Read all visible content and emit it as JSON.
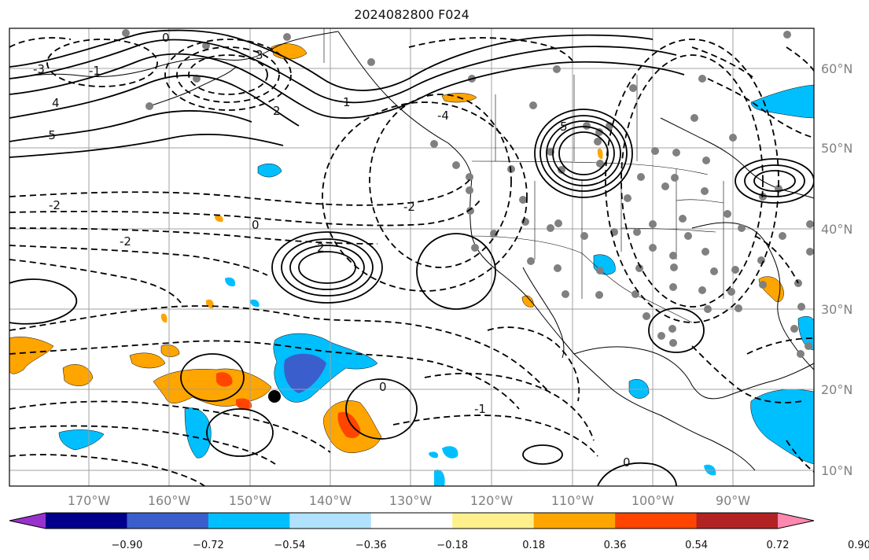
{
  "title": "2024082800 F024",
  "latitude_labels": [
    "60°N",
    "50°N",
    "40°N",
    "30°N",
    "20°N",
    "10°N"
  ],
  "longitude_labels": [
    "170°W",
    "160°W",
    "150°W",
    "140°W",
    "130°W",
    "120°W",
    "110°W",
    "100°W",
    "90°W"
  ],
  "colorbar": {
    "tick_labels": [
      "−0.90",
      "−0.72",
      "−0.54",
      "−0.36",
      "−0.18",
      "0.18",
      "0.36",
      "0.54",
      "0.72",
      "0.90"
    ],
    "colors": [
      "#9932cc",
      "#00008b",
      "#3a5fcd",
      "#00bfff",
      "#b0e2ff",
      "#ffffff",
      "#fff08c",
      "#ffa500",
      "#ff4500",
      "#b22222",
      "#ff88b0"
    ]
  },
  "contour_labels": [
    "0",
    "-1",
    "-2",
    "-3",
    "2",
    "1",
    "4",
    "3",
    "-4",
    "-5",
    "5",
    "0",
    "-2",
    "2",
    "-2",
    "0",
    "-1",
    "0"
  ],
  "colors": {
    "land_line": "#000000",
    "grid": "#a0a0a0",
    "station_dot": "#808080",
    "marker": "#000000"
  }
}
